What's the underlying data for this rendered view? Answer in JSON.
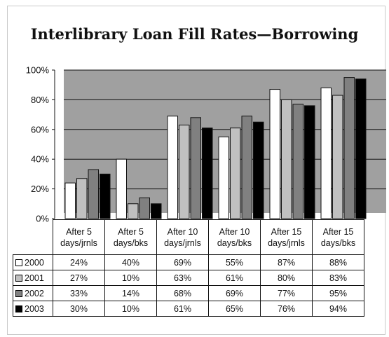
{
  "chart_data": {
    "type": "bar",
    "title": "Interlibrary Loan Fill Rates—Borrowing",
    "categories": [
      "After 5 days/jrnls",
      "After 5 days/bks",
      "After 10 days/jrnls",
      "After 10 days/bks",
      "After 15 days/jrnls",
      "After 15 days/bks"
    ],
    "category_lines": [
      [
        "After 5",
        "days/jrnls"
      ],
      [
        "After 5",
        "days/bks"
      ],
      [
        "After 10",
        "days/jrnls"
      ],
      [
        "After 10",
        "days/bks"
      ],
      [
        "After 15",
        "days/jrnls"
      ],
      [
        "After 15",
        "days/bks"
      ]
    ],
    "series": [
      {
        "name": "2000",
        "values": [
          24,
          40,
          69,
          55,
          87,
          88
        ],
        "labels": [
          "24%",
          "40%",
          "69%",
          "55%",
          "87%",
          "88%"
        ],
        "color": "#ffffff"
      },
      {
        "name": "2001",
        "values": [
          27,
          10,
          63,
          61,
          80,
          83
        ],
        "labels": [
          "27%",
          "10%",
          "63%",
          "61%",
          "80%",
          "83%"
        ],
        "color": "#c0c0c0"
      },
      {
        "name": "2002",
        "values": [
          33,
          14,
          68,
          69,
          77,
          95
        ],
        "labels": [
          "33%",
          "14%",
          "68%",
          "69%",
          "77%",
          "95%"
        ],
        "color": "#808080"
      },
      {
        "name": "2003",
        "values": [
          30,
          10,
          61,
          65,
          76,
          94
        ],
        "labels": [
          "30%",
          "10%",
          "61%",
          "65%",
          "76%",
          "94%"
        ],
        "color": "#000000"
      }
    ],
    "ylim": [
      0,
      100
    ],
    "yticks": [
      0,
      20,
      40,
      60,
      80,
      100
    ],
    "ytick_labels": [
      "0%",
      "20%",
      "40%",
      "60%",
      "80%",
      "100%"
    ],
    "plot_background": "#a0a0a0",
    "grid": true,
    "legend": "data-table"
  }
}
